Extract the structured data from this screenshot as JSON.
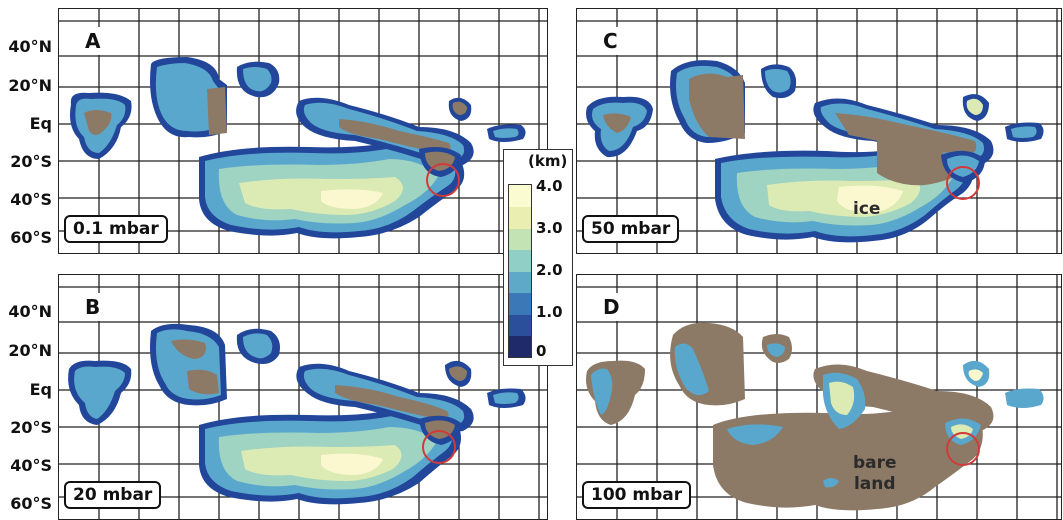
{
  "latitude_labels": [
    "40°N",
    "20°N",
    "Eq",
    "20°S",
    "40°S",
    "60°S"
  ],
  "panels": [
    {
      "letter": "A",
      "pressure": "0.1 mbar"
    },
    {
      "letter": "B",
      "pressure": "20 mbar"
    },
    {
      "letter": "C",
      "pressure": "50 mbar"
    },
    {
      "letter": "D",
      "pressure": "100 mbar"
    }
  ],
  "annotations": {
    "ice": "ice",
    "bare_land_1": "bare",
    "bare_land_2": "land"
  },
  "colorbar": {
    "unit": "(km)",
    "ticks": [
      "4.0",
      "3.0",
      "2.0",
      "1.0",
      "0"
    ],
    "colors": [
      "#fbfbd2",
      "#eaeeb0",
      "#c3e3b4",
      "#8fcfc6",
      "#5fa9c8",
      "#3a78b8",
      "#2b4f9a",
      "#1f2a6a"
    ]
  },
  "colors": {
    "bare_land": "#8c7a67",
    "ice_edge": "#21469a",
    "ice_thin": "#5aa7cd",
    "ice_mid": "#9fd3c2",
    "ice_thick": "#dcebb3",
    "ice_max": "#fbf8d0",
    "marker_circle": "#d23a3a"
  }
}
